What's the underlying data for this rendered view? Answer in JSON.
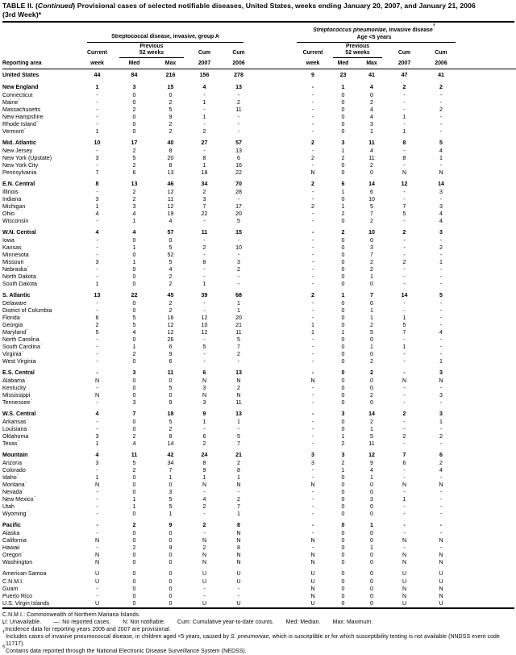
{
  "title": {
    "part1": "TABLE II. (",
    "continued": "Continued",
    "part2": ") Provisional cases of selected notifiable diseases, United States, weeks ending January 20, 2007, and January 21, 2006",
    "line2": "(3rd Week)*"
  },
  "header": {
    "reporting_area": "Reporting area",
    "group_a": {
      "label": "Streptococcal disease, invasive, group A"
    },
    "group_b": {
      "name_italic": "Streptococcus pneumoniae",
      "name_rest": ", invasive disease",
      "dagger": "†",
      "line2": "Age <5 years"
    },
    "sub": {
      "current": "Current",
      "week": "week",
      "previous": "Previous",
      "weeks52": "52 weeks",
      "med": "Med",
      "max": "Max",
      "cum": "Cum",
      "y2007": "2007",
      "y2006": "2006"
    }
  },
  "rows": [
    {
      "area": "United States",
      "total": true,
      "bold": true,
      "a": [
        "44",
        "84",
        "216",
        "156",
        "278"
      ],
      "b": [
        "9",
        "23",
        "41",
        "47",
        "41"
      ]
    },
    {
      "area": "New England",
      "bold": true,
      "gap": true,
      "a": [
        "1",
        "3",
        "15",
        "4",
        "13"
      ],
      "b": [
        "-",
        "1",
        "4",
        "2",
        "2"
      ]
    },
    {
      "area": "Connecticut",
      "a": [
        "-",
        "0",
        "0",
        "-",
        "-"
      ],
      "b": [
        "-",
        "0",
        "0",
        "-",
        "-"
      ]
    },
    {
      "area": "Maine",
      "sup": "§",
      "a": [
        "-",
        "0",
        "2",
        "1",
        "2"
      ],
      "b": [
        "-",
        "0",
        "2",
        "-",
        "-"
      ]
    },
    {
      "area": "Massachusetts",
      "a": [
        "-",
        "2",
        "5",
        "-",
        "11"
      ],
      "b": [
        "-",
        "0",
        "4",
        "-",
        "2"
      ]
    },
    {
      "area": "New Hampshire",
      "a": [
        "-",
        "0",
        "9",
        "1",
        "-"
      ],
      "b": [
        "-",
        "0",
        "4",
        "1",
        "-"
      ]
    },
    {
      "area": "Rhode Island",
      "sup": "§",
      "a": [
        "-",
        "0",
        "2",
        "-",
        "-"
      ],
      "b": [
        "-",
        "0",
        "3",
        "-",
        "-"
      ]
    },
    {
      "area": "Vermont",
      "sup": "§",
      "a": [
        "1",
        "0",
        "2",
        "2",
        "-"
      ],
      "b": [
        "-",
        "0",
        "1",
        "1",
        "-"
      ]
    },
    {
      "area": "Mid. Atlantic",
      "bold": true,
      "gap": true,
      "a": [
        "10",
        "17",
        "40",
        "27",
        "57"
      ],
      "b": [
        "2",
        "3",
        "11",
        "8",
        "5"
      ]
    },
    {
      "area": "New Jersey",
      "a": [
        "-",
        "2",
        "8",
        "-",
        "13"
      ],
      "b": [
        "-",
        "1",
        "4",
        "-",
        "4"
      ]
    },
    {
      "area": "New York (Upstate)",
      "a": [
        "3",
        "5",
        "20",
        "8",
        "6"
      ],
      "b": [
        "2",
        "2",
        "11",
        "8",
        "1"
      ]
    },
    {
      "area": "New York City",
      "a": [
        "-",
        "2",
        "8",
        "1",
        "16"
      ],
      "b": [
        "-",
        "0",
        "2",
        "-",
        "-"
      ]
    },
    {
      "area": "Pennsylvania",
      "a": [
        "7",
        "6",
        "13",
        "18",
        "22"
      ],
      "b": [
        "N",
        "0",
        "0",
        "N",
        "N"
      ]
    },
    {
      "area": "E.N. Central",
      "bold": true,
      "gap": true,
      "a": [
        "8",
        "13",
        "46",
        "34",
        "70"
      ],
      "b": [
        "2",
        "6",
        "14",
        "12",
        "14"
      ]
    },
    {
      "area": "Illinois",
      "a": [
        "-",
        "2",
        "12",
        "2",
        "28"
      ],
      "b": [
        "-",
        "1",
        "6",
        "-",
        "3"
      ]
    },
    {
      "area": "Indiana",
      "a": [
        "3",
        "2",
        "11",
        "3",
        "-"
      ],
      "b": [
        "-",
        "0",
        "10",
        "-",
        "-"
      ]
    },
    {
      "area": "Michigan",
      "a": [
        "1",
        "3",
        "12",
        "7",
        "17"
      ],
      "b": [
        "2",
        "1",
        "5",
        "7",
        "3"
      ]
    },
    {
      "area": "Ohio",
      "a": [
        "4",
        "4",
        "19",
        "22",
        "20"
      ],
      "b": [
        "-",
        "2",
        "7",
        "5",
        "4"
      ]
    },
    {
      "area": "Wisconsin",
      "a": [
        "-",
        "1",
        "4",
        "-",
        "5"
      ],
      "b": [
        "-",
        "0",
        "2",
        "-",
        "4"
      ]
    },
    {
      "area": "W.N. Central",
      "bold": true,
      "gap": true,
      "a": [
        "4",
        "4",
        "57",
        "11",
        "15"
      ],
      "b": [
        "-",
        "2",
        "10",
        "2",
        "3"
      ]
    },
    {
      "area": "Iowa",
      "a": [
        "-",
        "0",
        "0",
        "-",
        "-"
      ],
      "b": [
        "-",
        "0",
        "0",
        "-",
        "-"
      ]
    },
    {
      "area": "Kansas",
      "a": [
        "-",
        "1",
        "5",
        "2",
        "10"
      ],
      "b": [
        "-",
        "0",
        "3",
        "-",
        "2"
      ]
    },
    {
      "area": "Minnesota",
      "a": [
        "-",
        "0",
        "52",
        "-",
        "-"
      ],
      "b": [
        "-",
        "0",
        "7",
        "-",
        "-"
      ]
    },
    {
      "area": "Missouri",
      "a": [
        "3",
        "1",
        "5",
        "8",
        "3"
      ],
      "b": [
        "-",
        "0",
        "2",
        "2",
        "1"
      ]
    },
    {
      "area": "Nebraska",
      "sup": "§",
      "a": [
        "-",
        "0",
        "4",
        "-",
        "2"
      ],
      "b": [
        "-",
        "0",
        "2",
        "-",
        "-"
      ]
    },
    {
      "area": "North Dakota",
      "a": [
        "-",
        "0",
        "2",
        "-",
        "-"
      ],
      "b": [
        "-",
        "0",
        "1",
        "-",
        "-"
      ]
    },
    {
      "area": "South Dakota",
      "a": [
        "1",
        "0",
        "2",
        "1",
        "-"
      ],
      "b": [
        "-",
        "0",
        "0",
        "-",
        "-"
      ]
    },
    {
      "area": "S. Atlantic",
      "bold": true,
      "gap": true,
      "a": [
        "13",
        "22",
        "45",
        "39",
        "68"
      ],
      "b": [
        "2",
        "1",
        "7",
        "14",
        "5"
      ]
    },
    {
      "area": "Delaware",
      "a": [
        "-",
        "0",
        "2",
        "-",
        "1"
      ],
      "b": [
        "-",
        "0",
        "0",
        "-",
        "-"
      ]
    },
    {
      "area": "District of Columbia",
      "a": [
        "-",
        "0",
        "2",
        "-",
        "1"
      ],
      "b": [
        "-",
        "0",
        "1",
        "-",
        "-"
      ]
    },
    {
      "area": "Florida",
      "a": [
        "6",
        "5",
        "16",
        "12",
        "20"
      ],
      "b": [
        "-",
        "0",
        "1",
        "1",
        "-"
      ]
    },
    {
      "area": "Georgia",
      "a": [
        "2",
        "5",
        "12",
        "10",
        "21"
      ],
      "b": [
        "1",
        "0",
        "2",
        "5",
        "-"
      ]
    },
    {
      "area": "Maryland",
      "sup": "§",
      "a": [
        "5",
        "4",
        "12",
        "12",
        "11"
      ],
      "b": [
        "1",
        "1",
        "5",
        "7",
        "4"
      ]
    },
    {
      "area": "North Carolina",
      "a": [
        "-",
        "0",
        "26",
        "-",
        "5"
      ],
      "b": [
        "-",
        "0",
        "0",
        "-",
        "-"
      ]
    },
    {
      "area": "South Carolina",
      "sup": "§",
      "a": [
        "-",
        "1",
        "6",
        "5",
        "7"
      ],
      "b": [
        "-",
        "0",
        "1",
        "1",
        "-"
      ]
    },
    {
      "area": "Virginia",
      "sup": "§",
      "a": [
        "-",
        "2",
        "9",
        "-",
        "2"
      ],
      "b": [
        "-",
        "0",
        "0",
        "-",
        "-"
      ]
    },
    {
      "area": "West Virginia",
      "a": [
        "-",
        "0",
        "6",
        "-",
        "-"
      ],
      "b": [
        "-",
        "0",
        "2",
        "-",
        "1"
      ]
    },
    {
      "area": "E.S. Central",
      "bold": true,
      "gap": true,
      "a": [
        "-",
        "3",
        "11",
        "6",
        "13"
      ],
      "b": [
        "-",
        "0",
        "2",
        "-",
        "3"
      ]
    },
    {
      "area": "Alabama",
      "sup": "§",
      "a": [
        "N",
        "0",
        "0",
        "N",
        "N"
      ],
      "b": [
        "N",
        "0",
        "0",
        "N",
        "N"
      ]
    },
    {
      "area": "Kentucky",
      "a": [
        "-",
        "0",
        "5",
        "3",
        "2"
      ],
      "b": [
        "-",
        "0",
        "0",
        "-",
        "-"
      ]
    },
    {
      "area": "Mississippi",
      "a": [
        "N",
        "0",
        "0",
        "N",
        "N"
      ],
      "b": [
        "-",
        "0",
        "2",
        "-",
        "3"
      ]
    },
    {
      "area": "Tennessee",
      "sup": "§",
      "a": [
        "-",
        "3",
        "9",
        "3",
        "11"
      ],
      "b": [
        "-",
        "0",
        "0",
        "-",
        "-"
      ]
    },
    {
      "area": "W.S. Central",
      "bold": true,
      "gap": true,
      "a": [
        "4",
        "7",
        "18",
        "9",
        "13"
      ],
      "b": [
        "-",
        "3",
        "14",
        "2",
        "3"
      ]
    },
    {
      "area": "Arkansas",
      "sup": "§",
      "a": [
        "-",
        "0",
        "5",
        "1",
        "1"
      ],
      "b": [
        "-",
        "0",
        "2",
        "-",
        "1"
      ]
    },
    {
      "area": "Louisiana",
      "a": [
        "-",
        "0",
        "2",
        "-",
        "-"
      ],
      "b": [
        "-",
        "0",
        "1",
        "-",
        "-"
      ]
    },
    {
      "area": "Oklahoma",
      "a": [
        "3",
        "2",
        "8",
        "6",
        "5"
      ],
      "b": [
        "-",
        "1",
        "5",
        "2",
        "2"
      ]
    },
    {
      "area": "Texas",
      "sup": "§",
      "a": [
        "1",
        "4",
        "14",
        "2",
        "7"
      ],
      "b": [
        "-",
        "2",
        "11",
        "-",
        "-"
      ]
    },
    {
      "area": "Mountain",
      "bold": true,
      "gap": true,
      "a": [
        "4",
        "11",
        "42",
        "24",
        "21"
      ],
      "b": [
        "3",
        "3",
        "12",
        "7",
        "6"
      ]
    },
    {
      "area": "Arizona",
      "a": [
        "3",
        "5",
        "34",
        "8",
        "2"
      ],
      "b": [
        "3",
        "2",
        "9",
        "6",
        "2"
      ]
    },
    {
      "area": "Colorado",
      "a": [
        "-",
        "2",
        "7",
        "9",
        "8"
      ],
      "b": [
        "-",
        "1",
        "4",
        "-",
        "4"
      ]
    },
    {
      "area": "Idaho",
      "sup": "§",
      "a": [
        "1",
        "0",
        "1",
        "1",
        "1"
      ],
      "b": [
        "-",
        "0",
        "1",
        "-",
        "-"
      ]
    },
    {
      "area": "Montana",
      "sup": "§",
      "a": [
        "N",
        "0",
        "0",
        "N",
        "N"
      ],
      "b": [
        "N",
        "0",
        "0",
        "N",
        "N"
      ]
    },
    {
      "area": "Nevada",
      "sup": "§",
      "a": [
        "-",
        "0",
        "3",
        "-",
        "-"
      ],
      "b": [
        "-",
        "0",
        "0",
        "-",
        "-"
      ]
    },
    {
      "area": "New Mexico",
      "sup": "§",
      "a": [
        "-",
        "1",
        "5",
        "4",
        "2"
      ],
      "b": [
        "-",
        "0",
        "3",
        "1",
        "-"
      ]
    },
    {
      "area": "Utah",
      "a": [
        "-",
        "1",
        "5",
        "2",
        "7"
      ],
      "b": [
        "-",
        "0",
        "0",
        "-",
        "-"
      ]
    },
    {
      "area": "Wyoming",
      "sup": "§",
      "a": [
        "-",
        "0",
        "1",
        "-",
        "1"
      ],
      "b": [
        "-",
        "0",
        "0",
        "-",
        "-"
      ]
    },
    {
      "area": "Pacific",
      "bold": true,
      "gap": true,
      "a": [
        "-",
        "2",
        "9",
        "2",
        "8"
      ],
      "b": [
        "-",
        "0",
        "1",
        "-",
        "-"
      ]
    },
    {
      "area": "Alaska",
      "a": [
        "-",
        "0",
        "0",
        "-",
        "N"
      ],
      "b": [
        "-",
        "0",
        "0",
        "-",
        "-"
      ]
    },
    {
      "area": "California",
      "a": [
        "N",
        "0",
        "0",
        "N",
        "N"
      ],
      "b": [
        "N",
        "0",
        "0",
        "N",
        "N"
      ]
    },
    {
      "area": "Hawaii",
      "a": [
        "-",
        "2",
        "9",
        "2",
        "8"
      ],
      "b": [
        "-",
        "0",
        "1",
        "-",
        "-"
      ]
    },
    {
      "area": "Oregon",
      "sup": "§",
      "a": [
        "N",
        "0",
        "0",
        "N",
        "N"
      ],
      "b": [
        "N",
        "0",
        "0",
        "N",
        "N"
      ]
    },
    {
      "area": "Washington",
      "a": [
        "N",
        "0",
        "0",
        "N",
        "N"
      ],
      "b": [
        "N",
        "0",
        "0",
        "N",
        "N"
      ]
    },
    {
      "area": "American Samoa",
      "gap": true,
      "a": [
        "U",
        "0",
        "0",
        "U",
        "U"
      ],
      "b": [
        "U",
        "0",
        "0",
        "U",
        "U"
      ]
    },
    {
      "area": "C.N.M.I.",
      "a": [
        "U",
        "0",
        "0",
        "U",
        "U"
      ],
      "b": [
        "U",
        "0",
        "0",
        "U",
        "U"
      ]
    },
    {
      "area": "Guam",
      "a": [
        "-",
        "0",
        "0",
        "-",
        "-"
      ],
      "b": [
        "N",
        "0",
        "0",
        "N",
        "N"
      ]
    },
    {
      "area": "Puerto Rico",
      "a": [
        "-",
        "0",
        "0",
        "-",
        "-"
      ],
      "b": [
        "N",
        "0",
        "0",
        "N",
        "N"
      ]
    },
    {
      "area": "U.S. Virgin Islands",
      "a": [
        "U",
        "0",
        "0",
        "U",
        "U"
      ],
      "b": [
        "U",
        "0",
        "0",
        "U",
        "U"
      ]
    }
  ],
  "footnotes": {
    "cnmi": "C.N.M.I.: Commonwealth of Northern Mariana Islands.",
    "legend": [
      "U: Unavailable.",
      "—: No reported cases.",
      "N: Not notifiable.",
      "Cum: Cumulative year-to-date counts.",
      "Med: Median.",
      "Max: Maximum."
    ],
    "star": {
      "marker": "*",
      "text": "Incidence data for reporting years 2006 and 2007 are provisional."
    },
    "dagger": {
      "marker": "†",
      "pre": "Includes cases of invasive pneumococcal disease, in children aged <5 years, caused by ",
      "italic": "S. pneumoniae",
      "post": ", which is susceptible or for which susceptibility testing is not available (NNDSS event code 11717)."
    },
    "section": {
      "marker": "§",
      "text": "Contains data reported through the National Electronic Disease Surveillance System (NEDSS)."
    }
  }
}
